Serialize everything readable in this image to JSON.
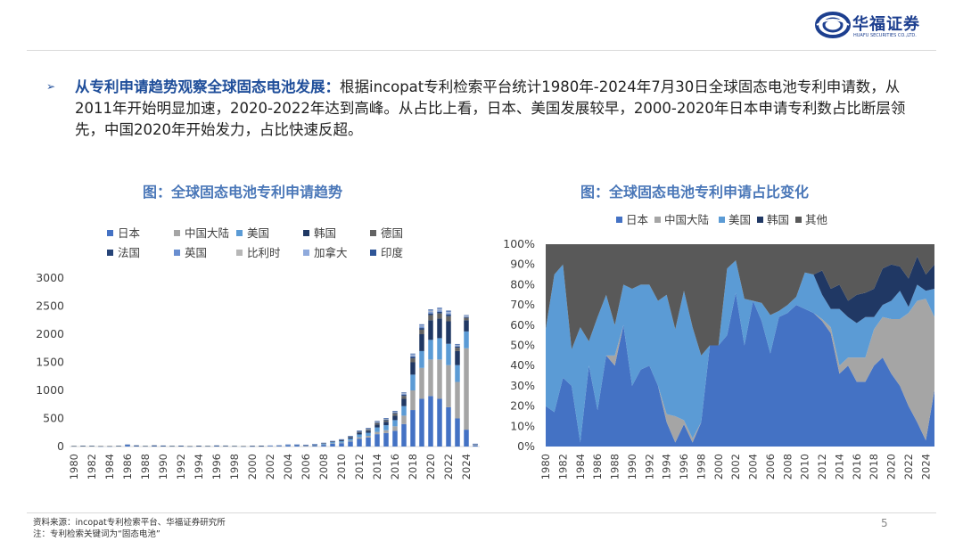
{
  "header": {
    "logo_cn": "华福证券",
    "logo_en": "HUAFU SECURITIES CO.,LTD."
  },
  "intro": {
    "bullet": "➢",
    "highlight": "从专利申请趋势观察全球固态电池发展：",
    "body": "根据incopat专利检索平台统计1980年-2024年7月30日全球固态电池专利申请数，从2011年开始明显加速，2020-2022年达到高峰。从占比上看，日本、美国发展较早，2000-2020年日本申请专利数占比断层领先，中国2020年开始发力，占比快速反超。"
  },
  "colors": {
    "japan": "#4472c4",
    "china": "#a5a5a5",
    "usa": "#5b9bd5",
    "korea": "#203864",
    "germany": "#636363",
    "france": "#264478",
    "uk": "#698ed0",
    "belgium": "#b7b7b7",
    "canada": "#8faadc",
    "india": "#2f5597",
    "others": "#595959"
  },
  "chart_data": [
    {
      "type": "bar",
      "stacked": true,
      "title": "图：全球固态电池专利申请趋势",
      "yticks": [
        "3000",
        "2500",
        "2000",
        "1500",
        "1000",
        "500",
        "0"
      ],
      "ylim": [
        0,
        3000
      ],
      "xticks": [
        "1980",
        "1982",
        "1984",
        "1986",
        "1988",
        "1990",
        "1992",
        "1994",
        "1996",
        "1998",
        "2000",
        "2002",
        "2004",
        "2006",
        "2008",
        "2010",
        "2012",
        "2014",
        "2016",
        "2018",
        "2020",
        "2022",
        "2024"
      ],
      "x": [
        1980,
        1981,
        1982,
        1983,
        1984,
        1985,
        1986,
        1987,
        1988,
        1989,
        1990,
        1991,
        1992,
        1993,
        1994,
        1995,
        1996,
        1997,
        1998,
        1999,
        2000,
        2001,
        2002,
        2003,
        2004,
        2005,
        2006,
        2007,
        2008,
        2009,
        2010,
        2011,
        2012,
        2013,
        2014,
        2015,
        2016,
        2017,
        2018,
        2019,
        2020,
        2021,
        2022,
        2023,
        2024,
        2025
      ],
      "legend": [
        "日本",
        "中国大陆",
        "美国",
        "韩国",
        "德国",
        "法国",
        "英国",
        "比利时",
        "加拿大",
        "印度"
      ],
      "series": [
        {
          "name": "日本",
          "values": [
            8,
            12,
            10,
            6,
            6,
            10,
            25,
            12,
            8,
            12,
            10,
            8,
            10,
            5,
            8,
            8,
            12,
            12,
            8,
            5,
            6,
            8,
            10,
            12,
            20,
            22,
            15,
            20,
            30,
            50,
            60,
            90,
            140,
            160,
            220,
            240,
            280,
            400,
            650,
            850,
            900,
            850,
            700,
            500,
            300,
            20
          ]
        },
        {
          "name": "中国大陆",
          "values": [
            0,
            0,
            0,
            0,
            0,
            0,
            0,
            0,
            0,
            0,
            0,
            0,
            0,
            0,
            0,
            0,
            0,
            0,
            0,
            0,
            0,
            0,
            0,
            0,
            0,
            0,
            2,
            3,
            5,
            8,
            10,
            15,
            25,
            30,
            40,
            50,
            80,
            150,
            350,
            550,
            650,
            700,
            750,
            650,
            1450,
            15
          ]
        },
        {
          "name": "美国",
          "values": [
            2,
            3,
            3,
            2,
            2,
            3,
            6,
            5,
            3,
            5,
            5,
            4,
            4,
            3,
            3,
            3,
            4,
            4,
            3,
            3,
            3,
            4,
            5,
            6,
            10,
            10,
            8,
            10,
            15,
            20,
            25,
            35,
            50,
            55,
            80,
            90,
            110,
            170,
            280,
            300,
            350,
            380,
            380,
            300,
            300,
            5
          ]
        },
        {
          "name": "韩国",
          "values": [
            0,
            0,
            0,
            0,
            0,
            0,
            0,
            0,
            0,
            0,
            0,
            0,
            0,
            0,
            0,
            0,
            0,
            0,
            0,
            0,
            0,
            0,
            0,
            0,
            2,
            3,
            3,
            5,
            8,
            12,
            15,
            20,
            30,
            35,
            50,
            60,
            80,
            130,
            220,
            300,
            350,
            350,
            400,
            250,
            200,
            5
          ]
        },
        {
          "name": "德国",
          "values": [
            1,
            1,
            1,
            1,
            1,
            1,
            2,
            1,
            1,
            1,
            1,
            1,
            1,
            1,
            1,
            1,
            1,
            1,
            1,
            1,
            1,
            1,
            1,
            1,
            2,
            2,
            2,
            3,
            4,
            5,
            8,
            10,
            15,
            18,
            25,
            25,
            35,
            50,
            70,
            80,
            90,
            90,
            90,
            60,
            40,
            2
          ]
        },
        {
          "name": "法国",
          "values": [
            0,
            0,
            0,
            0,
            0,
            0,
            1,
            1,
            0,
            1,
            1,
            0,
            1,
            0,
            1,
            0,
            1,
            0,
            0,
            0,
            1,
            1,
            1,
            1,
            1,
            1,
            1,
            2,
            2,
            3,
            3,
            5,
            8,
            10,
            12,
            12,
            15,
            20,
            25,
            30,
            30,
            30,
            30,
            20,
            15,
            1
          ]
        },
        {
          "name": "英国",
          "values": [
            0,
            0,
            0,
            0,
            0,
            0,
            1,
            0,
            0,
            0,
            0,
            0,
            0,
            0,
            0,
            0,
            0,
            0,
            0,
            0,
            0,
            0,
            0,
            0,
            1,
            1,
            1,
            1,
            2,
            2,
            3,
            4,
            6,
            8,
            10,
            10,
            12,
            15,
            20,
            25,
            25,
            25,
            25,
            15,
            10,
            1
          ]
        },
        {
          "name": "比利时",
          "values": [
            0,
            0,
            0,
            0,
            0,
            0,
            0,
            0,
            0,
            0,
            0,
            0,
            0,
            0,
            0,
            0,
            0,
            0,
            0,
            0,
            0,
            0,
            0,
            0,
            0,
            0,
            0,
            0,
            1,
            1,
            1,
            2,
            3,
            3,
            5,
            5,
            6,
            8,
            10,
            10,
            10,
            10,
            10,
            6,
            5,
            0
          ]
        },
        {
          "name": "加拿大",
          "values": [
            0,
            0,
            0,
            0,
            0,
            0,
            0,
            0,
            0,
            0,
            0,
            0,
            0,
            0,
            0,
            0,
            0,
            0,
            0,
            0,
            0,
            0,
            1,
            1,
            1,
            1,
            1,
            2,
            2,
            3,
            3,
            5,
            6,
            8,
            10,
            10,
            12,
            15,
            20,
            20,
            20,
            20,
            20,
            15,
            10,
            1
          ]
        },
        {
          "name": "印度",
          "values": [
            0,
            0,
            0,
            0,
            0,
            0,
            0,
            0,
            0,
            0,
            0,
            0,
            0,
            0,
            0,
            0,
            0,
            0,
            0,
            0,
            0,
            0,
            0,
            0,
            0,
            0,
            0,
            0,
            0,
            0,
            1,
            1,
            2,
            3,
            3,
            4,
            5,
            6,
            10,
            12,
            15,
            15,
            15,
            10,
            10,
            0
          ]
        }
      ]
    },
    {
      "type": "area",
      "stacked": true,
      "percent": true,
      "title": "图：全球固态电池专利申请占比变化",
      "yticks": [
        "100%",
        "90%",
        "80%",
        "70%",
        "60%",
        "50%",
        "40%",
        "30%",
        "20%",
        "10%",
        "0%"
      ],
      "ylim": [
        0,
        100
      ],
      "xticks": [
        "1980",
        "1982",
        "1984",
        "1986",
        "1988",
        "1990",
        "1992",
        "1994",
        "1996",
        "1998",
        "2000",
        "2002",
        "2004",
        "2006",
        "2008",
        "2010",
        "2012",
        "2014",
        "2016",
        "2018",
        "2020",
        "2022",
        "2024"
      ],
      "x": [
        1980,
        1981,
        1982,
        1983,
        1984,
        1985,
        1986,
        1987,
        1988,
        1989,
        1990,
        1991,
        1992,
        1993,
        1994,
        1995,
        1996,
        1997,
        1998,
        1999,
        2000,
        2001,
        2002,
        2003,
        2004,
        2005,
        2006,
        2007,
        2008,
        2009,
        2010,
        2011,
        2012,
        2013,
        2014,
        2015,
        2016,
        2017,
        2018,
        2019,
        2020,
        2021,
        2022,
        2023,
        2024,
        2025
      ],
      "legend": [
        "日本",
        "中国大陆",
        "美国",
        "韩国",
        "其他"
      ],
      "series": [
        {
          "name": "日本",
          "values": [
            20,
            17,
            34,
            30,
            2,
            40,
            18,
            45,
            40,
            60,
            30,
            38,
            40,
            30,
            12,
            2,
            11,
            2,
            12,
            50,
            50,
            55,
            76,
            50,
            72,
            62,
            46,
            64,
            66,
            70,
            68,
            66,
            62,
            56,
            36,
            40,
            32,
            32,
            40,
            44,
            36,
            30,
            20,
            12,
            3,
            28
          ]
        },
        {
          "name": "中国大陆",
          "values": [
            0,
            0,
            0,
            0,
            0,
            0,
            0,
            0,
            5,
            0,
            0,
            0,
            0,
            0,
            4,
            13,
            2,
            2,
            0,
            0,
            0,
            0,
            0,
            0,
            0,
            0,
            0,
            0,
            0,
            0,
            0,
            0,
            1,
            3,
            4,
            4,
            12,
            12,
            18,
            20,
            27,
            33,
            46,
            60,
            70,
            36
          ]
        },
        {
          "name": "美国",
          "values": [
            38,
            68,
            56,
            18,
            57,
            12,
            46,
            30,
            15,
            20,
            48,
            42,
            40,
            42,
            59,
            43,
            64,
            55,
            33,
            0,
            0,
            33,
            16,
            23,
            0,
            9,
            19,
            3,
            4,
            4,
            18,
            19,
            12,
            9,
            28,
            20,
            17,
            20,
            6,
            6,
            9,
            14,
            3,
            8,
            4,
            14
          ]
        },
        {
          "name": "韩国",
          "values": [
            0,
            0,
            0,
            0,
            0,
            0,
            0,
            0,
            0,
            0,
            0,
            0,
            0,
            0,
            0,
            0,
            0,
            0,
            0,
            0,
            0,
            0,
            0,
            0,
            0,
            0,
            0,
            0,
            0,
            0,
            0,
            0,
            12,
            10,
            12,
            8,
            14,
            12,
            14,
            18,
            18,
            12,
            14,
            14,
            8,
            12
          ]
        },
        {
          "name": "其他",
          "values": [
            42,
            15,
            10,
            52,
            41,
            48,
            36,
            25,
            40,
            20,
            22,
            20,
            20,
            28,
            25,
            42,
            23,
            41,
            55,
            50,
            50,
            12,
            8,
            27,
            28,
            29,
            35,
            33,
            30,
            26,
            14,
            15,
            13,
            22,
            20,
            28,
            25,
            24,
            22,
            12,
            10,
            11,
            17,
            6,
            15,
            10
          ]
        }
      ]
    }
  ],
  "footer": {
    "source": "资料来源：incopat专利检索平台、华福证券研究所",
    "note": "注：专利检索关键词为“固态电池”",
    "page": "5"
  }
}
